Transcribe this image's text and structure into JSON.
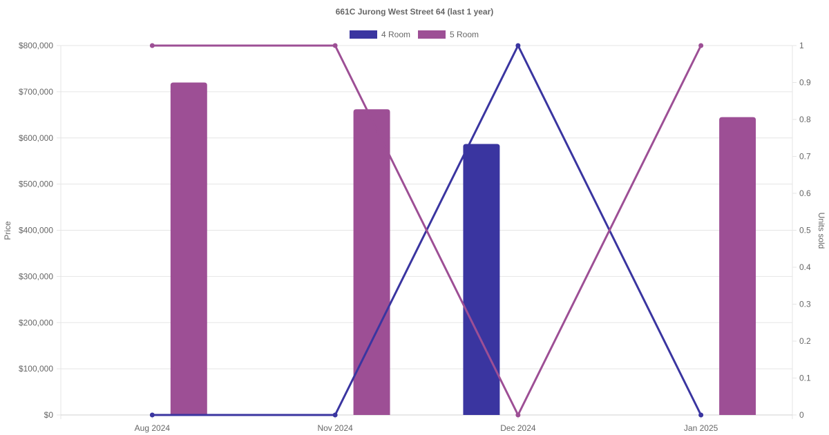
{
  "chart_data": {
    "type": "bar",
    "title": "661C Jurong West Street 64 (last 1 year)",
    "categories": [
      "Aug 2024",
      "Nov 2024",
      "Dec 2024",
      "Jan 2025"
    ],
    "y_left": {
      "label": "Price",
      "ylim": [
        0,
        800000
      ],
      "ticks": [
        "$0",
        "$100,000",
        "$200,000",
        "$300,000",
        "$400,000",
        "$500,000",
        "$600,000",
        "$700,000",
        "$800,000"
      ]
    },
    "y_right": {
      "label": "Units sold",
      "ylim": [
        0,
        1
      ],
      "ticks": [
        "0",
        "0.1",
        "0.2",
        "0.3",
        "0.4",
        "0.5",
        "0.6",
        "0.7",
        "0.8",
        "0.9",
        "1"
      ]
    },
    "legend_position": "top-center",
    "grid": true,
    "series": [
      {
        "name": "4 Room",
        "color": "#3a35a0",
        "price": [
          null,
          null,
          587000,
          null
        ],
        "units_sold": [
          0,
          0,
          1,
          0
        ]
      },
      {
        "name": "5 Room",
        "color": "#9d4f95",
        "price": [
          720000,
          662000,
          null,
          645000
        ],
        "units_sold": [
          1,
          1,
          0,
          1
        ]
      }
    ]
  }
}
